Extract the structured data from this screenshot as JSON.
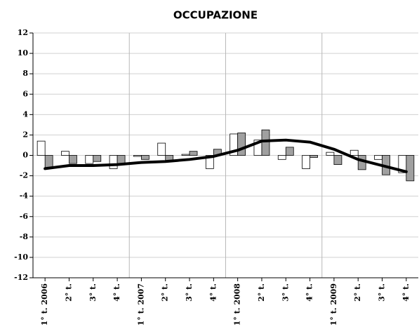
{
  "chart_data": {
    "type": "bar",
    "title": "OCCUPAZIONE",
    "categories": [
      "1° t. 2006",
      "2° t.",
      "3° t.",
      "4° t.",
      "1° t. 2007",
      "2° t.",
      "3° t.",
      "4° t.",
      "1° t. 2008",
      "2° t.",
      "3° t.",
      "4° t.",
      "1° t. 2009",
      "2° t.",
      "3° t.",
      "4° t."
    ],
    "series": [
      {
        "type": "bar",
        "color": "#ffffff",
        "values": [
          1.4,
          0.4,
          -0.8,
          -1.3,
          -0.1,
          1.2,
          0.1,
          -1.3,
          2.1,
          1.5,
          -0.4,
          -1.3,
          0.3,
          0.5,
          -0.4,
          -1.7
        ]
      },
      {
        "type": "bar",
        "color": "#a0a0a0",
        "values": [
          -1.3,
          -0.8,
          -0.6,
          -0.8,
          -0.4,
          -0.5,
          0.4,
          0.6,
          2.2,
          2.5,
          0.8,
          -0.2,
          -0.9,
          -1.4,
          -1.9,
          -2.5
        ]
      },
      {
        "type": "line",
        "color": "#000000",
        "values": [
          -1.3,
          -1.0,
          -1.0,
          -0.9,
          -0.7,
          -0.6,
          -0.4,
          -0.1,
          0.5,
          1.4,
          1.5,
          1.3,
          0.6,
          -0.4,
          -1.0,
          -1.6
        ]
      }
    ],
    "ylim": [
      -12,
      12
    ],
    "yticks": [
      -12,
      -10,
      -8,
      -6,
      -4,
      -2,
      0,
      2,
      4,
      6,
      8,
      10,
      12
    ],
    "grid": true
  }
}
